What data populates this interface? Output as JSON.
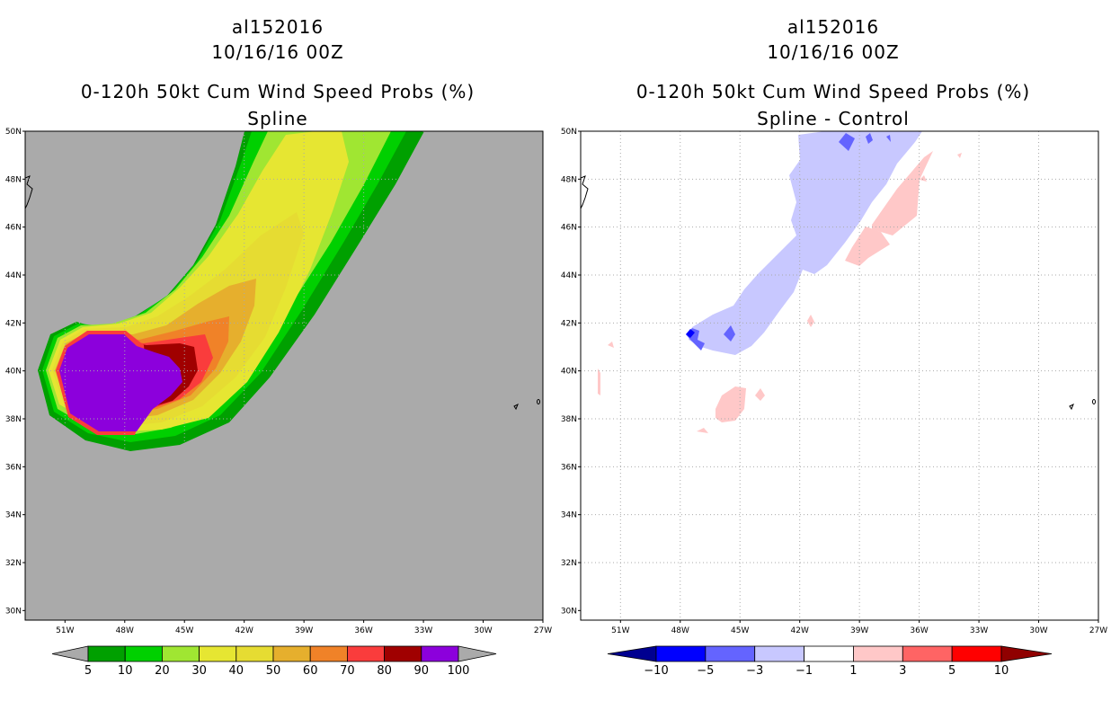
{
  "panels": [
    {
      "storm_id": "al152016",
      "datetime": "10/16/16 00Z",
      "product": "0-120h 50kt Cum Wind Speed Probs (%)",
      "subtitle": "Spline"
    },
    {
      "storm_id": "al152016",
      "datetime": "10/16/16 00Z",
      "product": "0-120h 50kt Cum Wind Speed Probs (%)",
      "subtitle": "Spline - Control"
    }
  ],
  "axes": {
    "lat_labels": [
      "30N",
      "32N",
      "34N",
      "36N",
      "38N",
      "40N",
      "42N",
      "44N",
      "46N",
      "48N",
      "50N"
    ],
    "lon_labels": [
      "51W",
      "48W",
      "45W",
      "42W",
      "39W",
      "36W",
      "33W",
      "30W",
      "27W"
    ]
  },
  "colorbars": {
    "prob": {
      "labels": [
        "5",
        "10",
        "20",
        "30",
        "40",
        "50",
        "60",
        "70",
        "80",
        "90",
        "100"
      ],
      "colors": [
        "#00a000",
        "#00d000",
        "#a0e632",
        "#e6e632",
        "#e6dc32",
        "#e6af2d",
        "#f08228",
        "#fa3c3c",
        "#a00000",
        "#8c00dc"
      ],
      "end_color": "#aaaaaa"
    },
    "diff": {
      "labels": [
        "-10",
        "-5",
        "-3",
        "-1",
        "1",
        "3",
        "5",
        "10"
      ],
      "colors": [
        "#0000ff",
        "#6464ff",
        "#c8c8ff",
        "#ffffff",
        "#ffc8c8",
        "#ff6464",
        "#ff0000"
      ],
      "low_end_color": "#000090",
      "high_end_color": "#900000"
    }
  },
  "colors": {
    "land_background": "#aaaaaa",
    "grid": "#aaaaaa"
  }
}
